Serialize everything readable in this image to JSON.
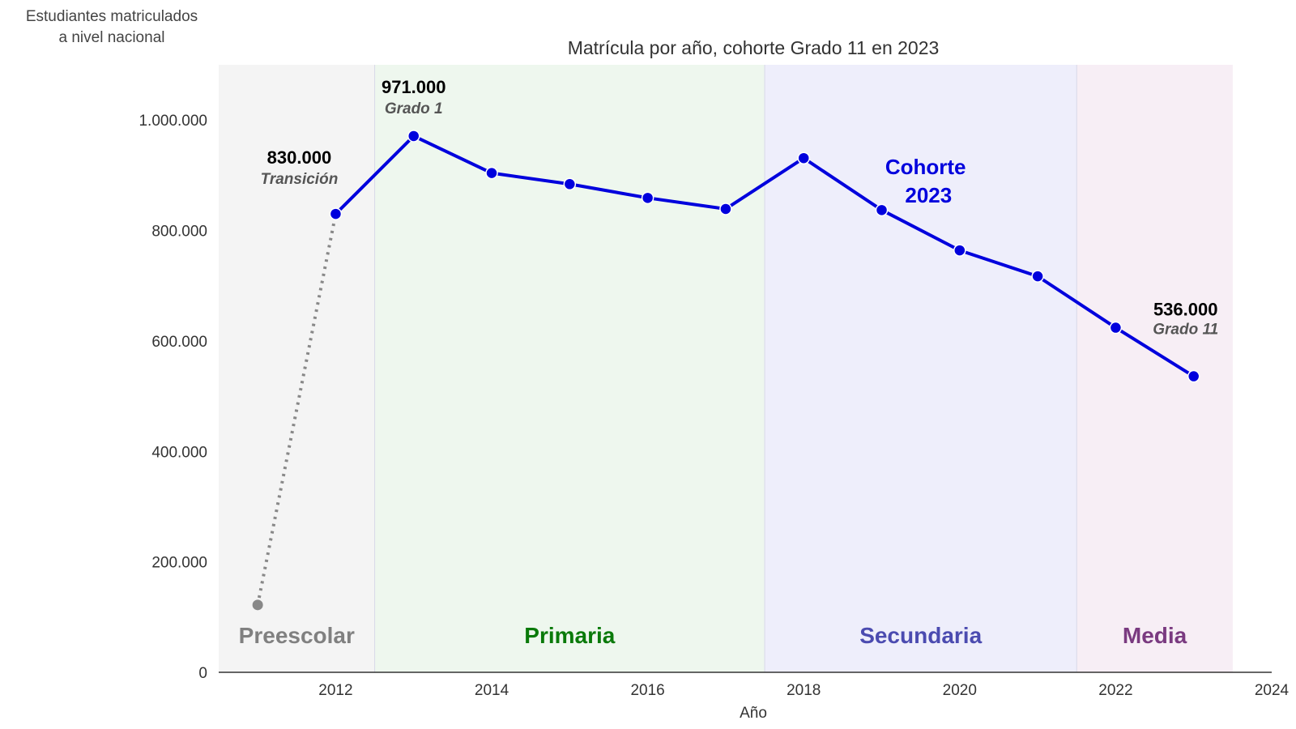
{
  "chart_data": {
    "type": "line",
    "title": "Matrícula por año, cohorte Grado 11 en 2023",
    "ylabel_lines": [
      "Estudiantes matriculados",
      "a nivel nacional"
    ],
    "xlabel": "Año",
    "xlim": [
      2010.5,
      2024
    ],
    "ylim": [
      0,
      1100000
    ],
    "x_ticks": [
      2012,
      2014,
      2016,
      2018,
      2020,
      2022,
      2024
    ],
    "x_tick_labels": [
      "2012",
      "2014",
      "2016",
      "2018",
      "2020",
      "2022",
      "2024"
    ],
    "y_ticks": [
      0,
      200000,
      400000,
      600000,
      800000,
      1000000
    ],
    "y_tick_labels": [
      "0",
      "200.000",
      "400.000",
      "600.000",
      "800.000",
      "1.000.000"
    ],
    "grid": false,
    "series": [
      {
        "style": "dotted",
        "color": "#888888",
        "x": [
          2011,
          2012
        ],
        "y": [
          122000,
          830000
        ],
        "markers": [
          true,
          false
        ]
      },
      {
        "style": "solid",
        "color": "#0000dd",
        "x": [
          2012,
          2013,
          2014,
          2015,
          2016,
          2017,
          2018,
          2019,
          2020,
          2021,
          2022,
          2023
        ],
        "y": [
          830000,
          971000,
          904000,
          884000,
          859000,
          839000,
          931000,
          837000,
          764000,
          717000,
          624000,
          536000
        ]
      }
    ],
    "stages": [
      {
        "label": "Preescolar",
        "x_start": 2010.5,
        "x_end": 2012.5,
        "fill": "#f4f4f4",
        "text_color": "#808080"
      },
      {
        "label": "Primaria",
        "x_start": 2012.5,
        "x_end": 2017.5,
        "fill": "#eef7ee",
        "text_color": "#0a7a0a"
      },
      {
        "label": "Secundaria",
        "x_start": 2017.5,
        "x_end": 2021.5,
        "fill": "#eeeefb",
        "text_color": "#4b4bb0"
      },
      {
        "label": "Media",
        "x_start": 2021.5,
        "x_end": 2023.5,
        "fill": "#f7eef5",
        "text_color": "#7a3a80"
      }
    ],
    "annotations": [
      {
        "value_label": "830.000",
        "sub_label": "Transición",
        "x": 2012,
        "y": 830000
      },
      {
        "value_label": "971.000",
        "sub_label": "Grado 1",
        "x": 2013,
        "y": 971000
      },
      {
        "value_label": "536.000",
        "sub_label": "Grado 11",
        "x": 2023,
        "y": 536000
      }
    ],
    "cohort_label_lines": [
      "Cohorte",
      "2023"
    ],
    "colors": {
      "line": "#0000dd",
      "dotted": "#888888",
      "axis": "#333333"
    }
  }
}
